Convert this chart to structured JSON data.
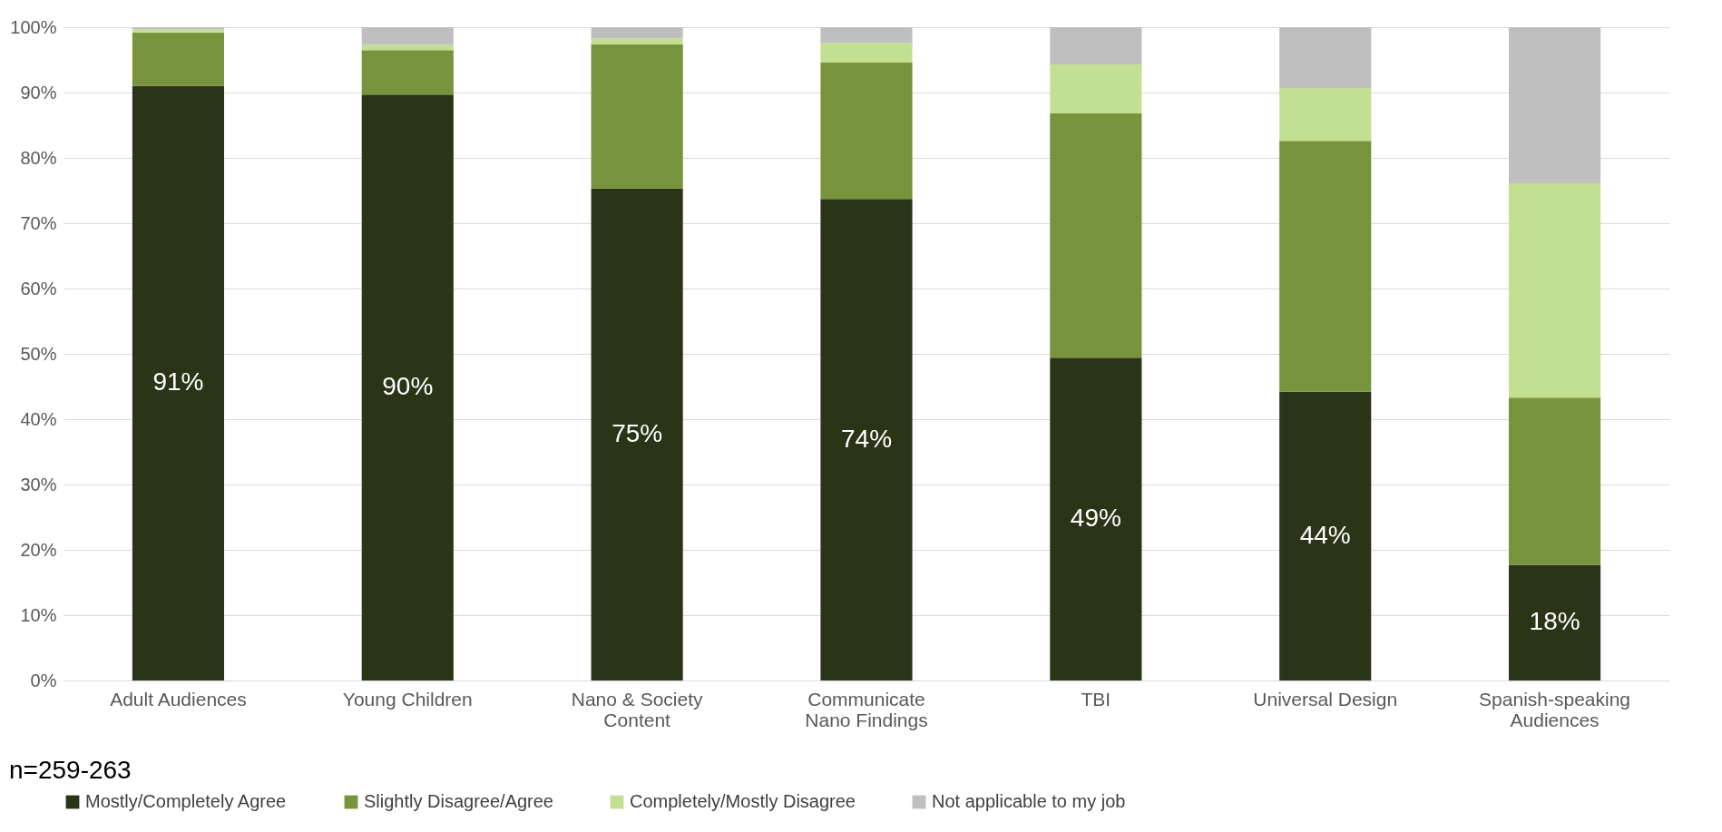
{
  "chart_data": {
    "type": "bar",
    "stacked": true,
    "categories": [
      "Adult Audiences",
      "Young Children",
      "Nano & Society Content",
      "Communicate Nano Findings",
      "TBI",
      "Universal Design",
      "Spanish-speaking Audiences"
    ],
    "series": [
      {
        "name": "Mostly/Completely Agree",
        "color": "#2a3517",
        "values": [
          91.0,
          89.7,
          75.3,
          73.7,
          49.4,
          44.2,
          17.7
        ],
        "value_labels": [
          "91%",
          "90%",
          "75%",
          "74%",
          "49%",
          "44%",
          "18%"
        ]
      },
      {
        "name": "Slightly Disagree/Agree",
        "color": "#77933c",
        "values": [
          8.2,
          6.8,
          22.1,
          20.9,
          37.4,
          38.4,
          25.6
        ]
      },
      {
        "name": "Completely/Mostly Disagree",
        "color": "#c3df91",
        "values": [
          0.5,
          0.8,
          0.9,
          3.0,
          7.5,
          8.1,
          32.8
        ]
      },
      {
        "name": "Not applicable to my job",
        "color": "#bfbfbf",
        "values": [
          0.3,
          2.7,
          1.7,
          2.4,
          5.7,
          9.3,
          23.9
        ]
      }
    ],
    "ylim": [
      0,
      100
    ],
    "yticks": [
      {
        "value": 0,
        "label": "0%"
      },
      {
        "value": 10,
        "label": "10%"
      },
      {
        "value": 20,
        "label": "20%"
      },
      {
        "value": 30,
        "label": "30%"
      },
      {
        "value": 40,
        "label": "40%"
      },
      {
        "value": 50,
        "label": "50%"
      },
      {
        "value": 60,
        "label": "60%"
      },
      {
        "value": 70,
        "label": "70%"
      },
      {
        "value": 80,
        "label": "80%"
      },
      {
        "value": 90,
        "label": "90%"
      },
      {
        "value": 100,
        "label": "100%"
      }
    ],
    "grid": "y",
    "legend": "bottom",
    "annotations": [
      "n=259-263"
    ]
  }
}
